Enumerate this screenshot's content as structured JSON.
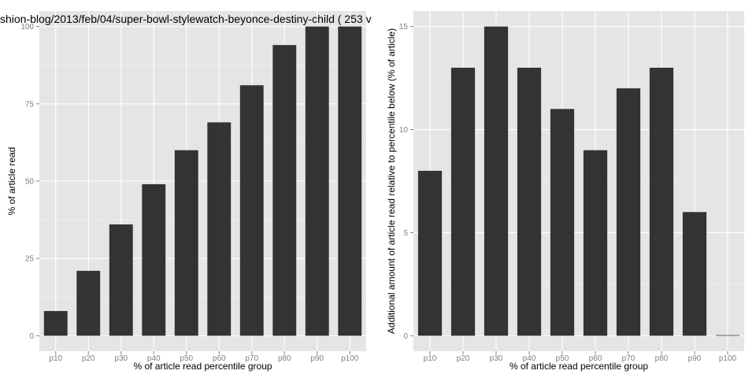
{
  "chart_data": [
    {
      "type": "bar",
      "title": "shion-blog/2013/feb/04/super-bowl-stylewatch-beyonce-destiny-child ( 253 v",
      "xlabel": "% of article read percentile group",
      "ylabel": "% of article read",
      "categories": [
        "p10",
        "p20",
        "p30",
        "p40",
        "p50",
        "p60",
        "p70",
        "p80",
        "p90",
        "p100"
      ],
      "values": [
        8,
        21,
        36,
        49,
        60,
        69,
        81,
        94,
        100,
        100
      ],
      "ylim": [
        -5,
        105
      ],
      "yticks": [
        0,
        25,
        50,
        75,
        100
      ],
      "bar_color": "#333333",
      "grid": true
    },
    {
      "type": "bar",
      "title": "",
      "xlabel": "% of article read percentile group",
      "ylabel": "Additional amount of article read relative to percentile below (% of article)",
      "categories": [
        "p10",
        "p20",
        "p30",
        "p40",
        "p50",
        "p60",
        "p70",
        "p80",
        "p90",
        "p100"
      ],
      "values": [
        8,
        13,
        15,
        13,
        11,
        9,
        12,
        13,
        6,
        0
      ],
      "ylim": [
        -0.75,
        15.75
      ],
      "yticks": [
        0,
        5,
        10,
        15
      ],
      "bar_color": "#333333",
      "grid": true
    }
  ],
  "colors": {
    "panel_background": "#e5e5e5",
    "grid": "#ffffff",
    "bar": "#333333",
    "tick_text": "#7f7f7f"
  }
}
